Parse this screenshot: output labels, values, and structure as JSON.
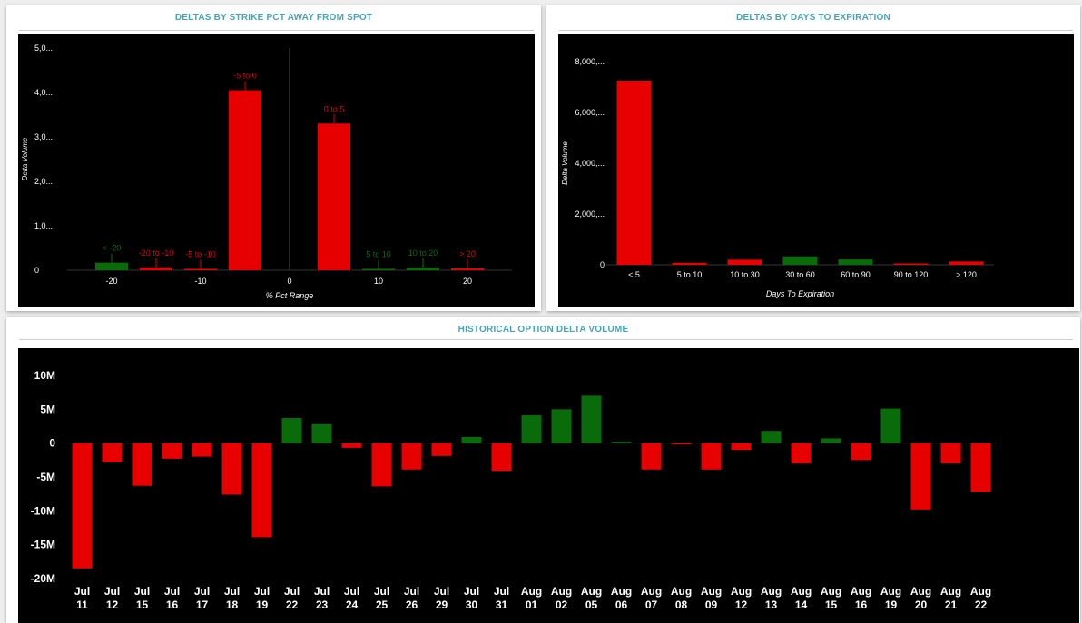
{
  "colors": {
    "negative": "#e60000",
    "positive": "#0a6b0a",
    "title": "#4aa3b5",
    "axis_text": "#ffffff"
  },
  "chart_data": [
    {
      "id": "strike",
      "type": "bar",
      "title": "DELTAS BY STRIKE PCT AWAY FROM SPOT",
      "xlabel": "% Pct Range",
      "ylabel": "Delta Volume",
      "ylim": [
        0,
        5000
      ],
      "yticks": [
        {
          "value": 0,
          "label": "0"
        },
        {
          "value": 1000,
          "label": "1,0..."
        },
        {
          "value": 2000,
          "label": "2,0..."
        },
        {
          "value": 3000,
          "label": "3,0..."
        },
        {
          "value": 4000,
          "label": "4,0..."
        },
        {
          "value": 5000,
          "label": "5,0..."
        }
      ],
      "xlim": [
        -25,
        25
      ],
      "xticks": [
        {
          "value": -20,
          "label": "-20"
        },
        {
          "value": -10,
          "label": "-10"
        },
        {
          "value": 0,
          "label": "0"
        },
        {
          "value": 10,
          "label": "10"
        },
        {
          "value": 20,
          "label": "20"
        }
      ],
      "bars": [
        {
          "label": "< -20",
          "x": -20,
          "value": 170,
          "sign": "positive"
        },
        {
          "label": "-20 to -10",
          "x": -15,
          "value": 60,
          "sign": "negative"
        },
        {
          "label": "-5 to -10",
          "x": -10,
          "value": 30,
          "sign": "negative"
        },
        {
          "label": "-5 to 0",
          "x": -5,
          "value": 4050,
          "sign": "negative"
        },
        {
          "label": "0 to 5",
          "x": 5,
          "value": 3300,
          "sign": "negative"
        },
        {
          "label": "5 to 10",
          "x": 10,
          "value": 20,
          "sign": "positive"
        },
        {
          "label": "10 to 20",
          "x": 15,
          "value": 60,
          "sign": "positive"
        },
        {
          "label": "> 20",
          "x": 20,
          "value": 40,
          "sign": "negative"
        }
      ],
      "grid": false
    },
    {
      "id": "dte",
      "type": "bar",
      "title": "DELTAS BY DAYS TO EXPIRATION",
      "xlabel": "Days To Expiration",
      "ylabel": "Delta Volume",
      "ylim": [
        0,
        8000
      ],
      "yticks": [
        {
          "value": 0,
          "label": "0"
        },
        {
          "value": 2000,
          "label": "2,000,..."
        },
        {
          "value": 4000,
          "label": "4,000,..."
        },
        {
          "value": 6000,
          "label": "6,000,..."
        },
        {
          "value": 8000,
          "label": "8,000,..."
        }
      ],
      "categories": [
        "< 5",
        "5 to 10",
        "10 to 30",
        "30 to 60",
        "60 to 90",
        "90 to 120",
        "> 120"
      ],
      "values": [
        7250,
        80,
        200,
        330,
        210,
        40,
        130
      ],
      "signs": [
        "negative",
        "negative",
        "negative",
        "positive",
        "positive",
        "negative",
        "negative"
      ],
      "grid": false
    },
    {
      "id": "history",
      "type": "bar",
      "title": "HISTORICAL OPTION DELTA VOLUME",
      "ylim": [
        -20000000,
        10000000
      ],
      "yticks": [
        {
          "value": 10000000,
          "label": "10M"
        },
        {
          "value": 5000000,
          "label": "5M"
        },
        {
          "value": 0,
          "label": "0"
        },
        {
          "value": -5000000,
          "label": "-5M"
        },
        {
          "value": -10000000,
          "label": "-10M"
        },
        {
          "value": -15000000,
          "label": "-15M"
        },
        {
          "value": -20000000,
          "label": "-20M"
        }
      ],
      "categories": [
        [
          "Jul",
          "11"
        ],
        [
          "Jul",
          "12"
        ],
        [
          "Jul",
          "15"
        ],
        [
          "Jul",
          "16"
        ],
        [
          "Jul",
          "17"
        ],
        [
          "Jul",
          "18"
        ],
        [
          "Jul",
          "19"
        ],
        [
          "Jul",
          "22"
        ],
        [
          "Jul",
          "23"
        ],
        [
          "Jul",
          "24"
        ],
        [
          "Jul",
          "25"
        ],
        [
          "Jul",
          "26"
        ],
        [
          "Jul",
          "29"
        ],
        [
          "Jul",
          "30"
        ],
        [
          "Jul",
          "31"
        ],
        [
          "Aug",
          "01"
        ],
        [
          "Aug",
          "02"
        ],
        [
          "Aug",
          "05"
        ],
        [
          "Aug",
          "06"
        ],
        [
          "Aug",
          "07"
        ],
        [
          "Aug",
          "08"
        ],
        [
          "Aug",
          "09"
        ],
        [
          "Aug",
          "12"
        ],
        [
          "Aug",
          "13"
        ],
        [
          "Aug",
          "14"
        ],
        [
          "Aug",
          "15"
        ],
        [
          "Aug",
          "16"
        ],
        [
          "Aug",
          "19"
        ],
        [
          "Aug",
          "20"
        ],
        [
          "Aug",
          "21"
        ],
        [
          "Aug",
          "22"
        ]
      ],
      "values": [
        -18500000,
        -2800000,
        -6300000,
        -2300000,
        -2000000,
        -7600000,
        -13900000,
        3700000,
        2800000,
        -700000,
        -6400000,
        -3900000,
        -1900000,
        900000,
        -4100000,
        4100000,
        5000000,
        7000000,
        200000,
        -3900000,
        -100000,
        -3900000,
        -1000000,
        1800000,
        -3000000,
        700000,
        -2500000,
        5100000,
        -9800000,
        -3000000,
        -7200000
      ],
      "grid": false
    }
  ]
}
